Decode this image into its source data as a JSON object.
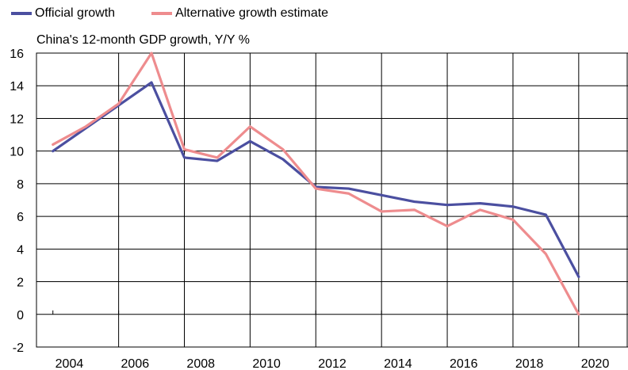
{
  "chart_data": {
    "type": "line",
    "title": "China's 12-month GDP growth, Y/Y %",
    "xlabel": "",
    "ylabel": "",
    "x": [
      2003,
      2004,
      2005,
      2006,
      2007,
      2008,
      2009,
      2010,
      2011,
      2012,
      2013,
      2014,
      2015,
      2016,
      2017,
      2018,
      2019
    ],
    "xlim": [
      2002.5,
      2020.5
    ],
    "x_tick_labels": [
      "2004",
      "2006",
      "2008",
      "2010",
      "2012",
      "2014",
      "2016",
      "2018",
      "2020"
    ],
    "ylim": [
      -2,
      16
    ],
    "y_ticks": [
      -2,
      0,
      2,
      4,
      6,
      8,
      10,
      12,
      14,
      16
    ],
    "grid": true,
    "legend_position": "top-left",
    "series": [
      {
        "name": "Official growth",
        "color": "#4b4fa0",
        "values": [
          10.0,
          11.4,
          12.8,
          14.2,
          9.6,
          9.4,
          10.6,
          9.5,
          7.8,
          7.7,
          7.3,
          6.9,
          6.7,
          6.8,
          6.6,
          6.1,
          2.3
        ]
      },
      {
        "name": "Alternative growth estimate",
        "color": "#ee8c8e",
        "values": [
          10.4,
          11.5,
          12.9,
          16.0,
          10.1,
          9.6,
          11.5,
          10.1,
          7.7,
          7.4,
          6.3,
          6.4,
          5.4,
          6.4,
          5.8,
          3.7,
          0.0
        ]
      }
    ]
  }
}
